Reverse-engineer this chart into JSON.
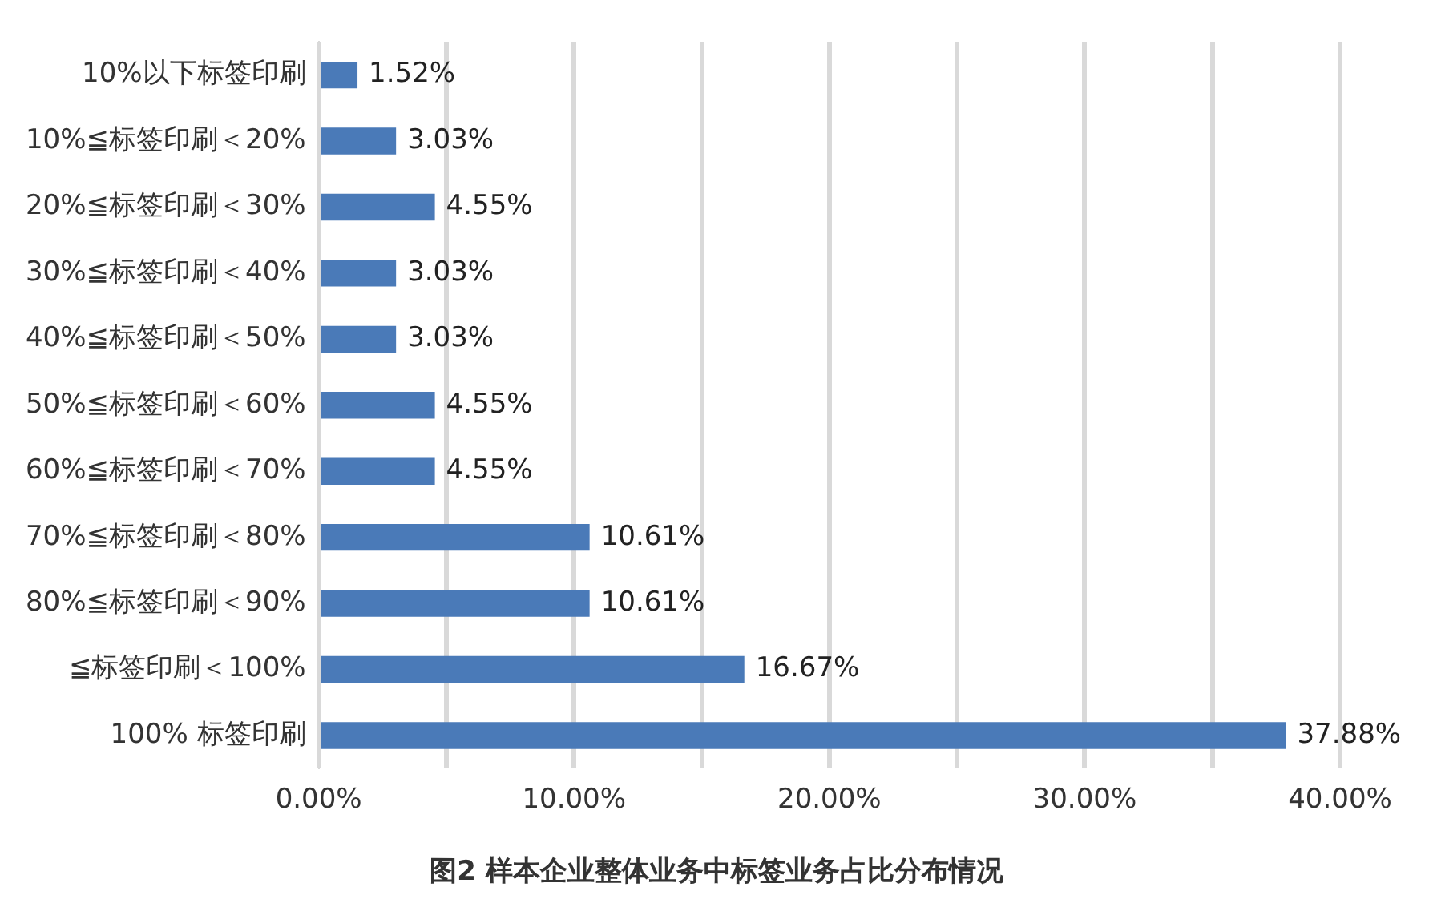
{
  "chart_data": {
    "type": "bar",
    "orientation": "horizontal",
    "title": "图2 样本企业整体业务中标签业务占比分布情况",
    "categories": [
      "10%以下标签印刷",
      "10%≦标签印刷＜20%",
      "20%≦标签印刷＜30%",
      "30%≦标签印刷＜40%",
      "40%≦标签印刷＜50%",
      "50%≦标签印刷＜60%",
      "60%≦标签印刷＜70%",
      "70%≦标签印刷＜80%",
      "80%≦标签印刷＜90%",
      "≦标签印刷＜100%",
      "100% 标签印刷"
    ],
    "values": [
      1.52,
      3.03,
      4.55,
      3.03,
      3.03,
      4.55,
      4.55,
      10.61,
      10.61,
      16.67,
      37.88
    ],
    "value_labels": [
      "1.52%",
      "3.03%",
      "4.55%",
      "3.03%",
      "3.03%",
      "4.55%",
      "4.55%",
      "10.61%",
      "10.61%",
      "16.67%",
      "37.88%"
    ],
    "color": "#4a7ab8",
    "xlim": [
      0,
      40
    ],
    "xticks": [
      {
        "value": 0,
        "label": "0.00%"
      },
      {
        "value": 5,
        "label": null
      },
      {
        "value": 10,
        "label": "10.00%"
      },
      {
        "value": 15,
        "label": null
      },
      {
        "value": 20,
        "label": "20.00%"
      },
      {
        "value": 25,
        "label": null
      },
      {
        "value": 30,
        "label": "30.00%"
      },
      {
        "value": 35,
        "label": null
      },
      {
        "value": 40,
        "label": "40.00%"
      }
    ],
    "grid": "x"
  }
}
